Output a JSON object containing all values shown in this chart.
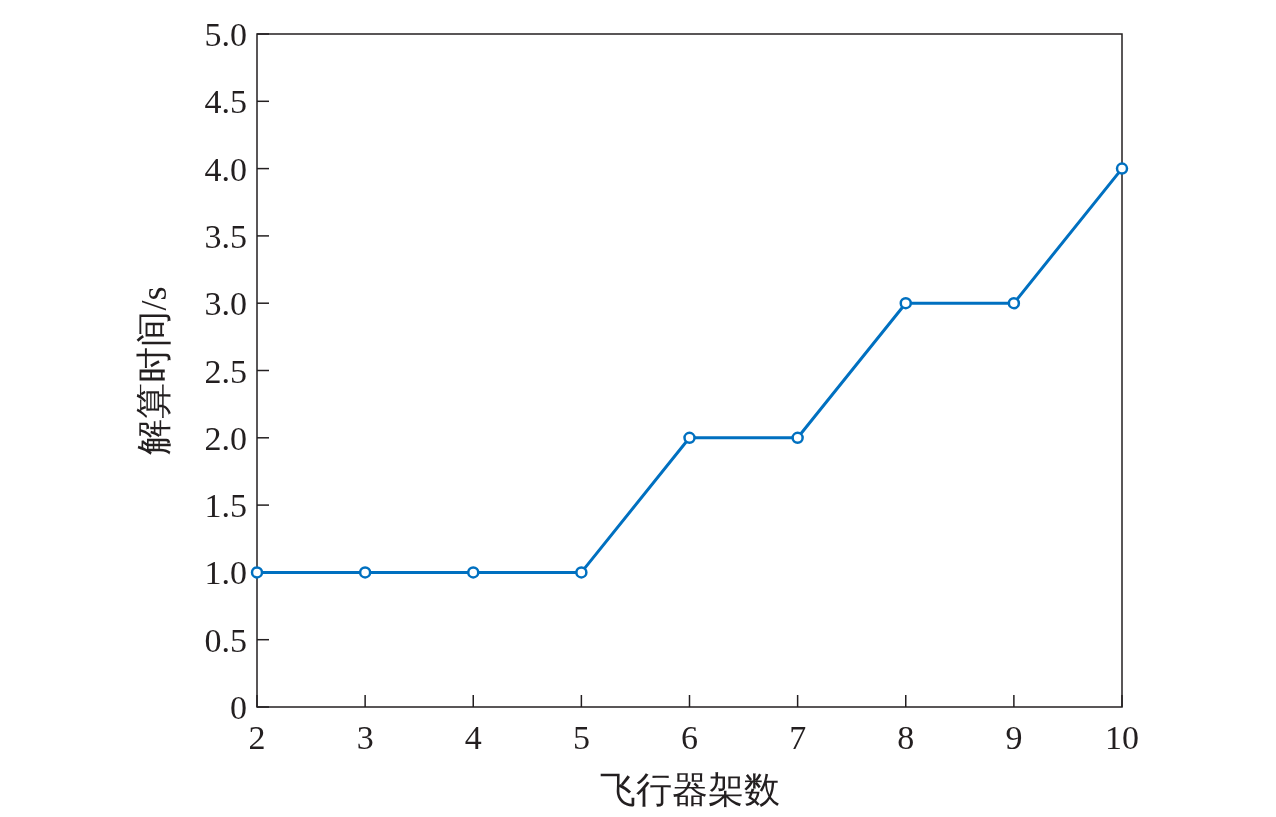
{
  "chart_data": {
    "type": "line",
    "xlabel": "飞行器架数",
    "ylabel": "解算时间/s",
    "x": [
      2,
      3,
      4,
      5,
      6,
      7,
      8,
      9,
      10
    ],
    "series": [
      {
        "color": "#0070c0",
        "values": [
          1,
          1,
          1,
          1,
          2,
          2,
          3,
          3,
          4
        ]
      }
    ],
    "xlim": [
      2,
      10
    ],
    "xticks": [
      2,
      3,
      4,
      5,
      6,
      7,
      8,
      9,
      10
    ],
    "ylim": [
      0,
      5
    ],
    "yticks": [
      0,
      0.5,
      {
        "value": 1,
        "label": "1.0"
      },
      1.5,
      {
        "value": 2,
        "label": "2.0"
      },
      2.5,
      {
        "value": 3,
        "label": "3.0"
      },
      3.5,
      {
        "value": 4,
        "label": "4.0"
      },
      4.5,
      {
        "value": 5,
        "label": "5.0"
      }
    ],
    "marker": "circle",
    "line_style": "solid"
  }
}
